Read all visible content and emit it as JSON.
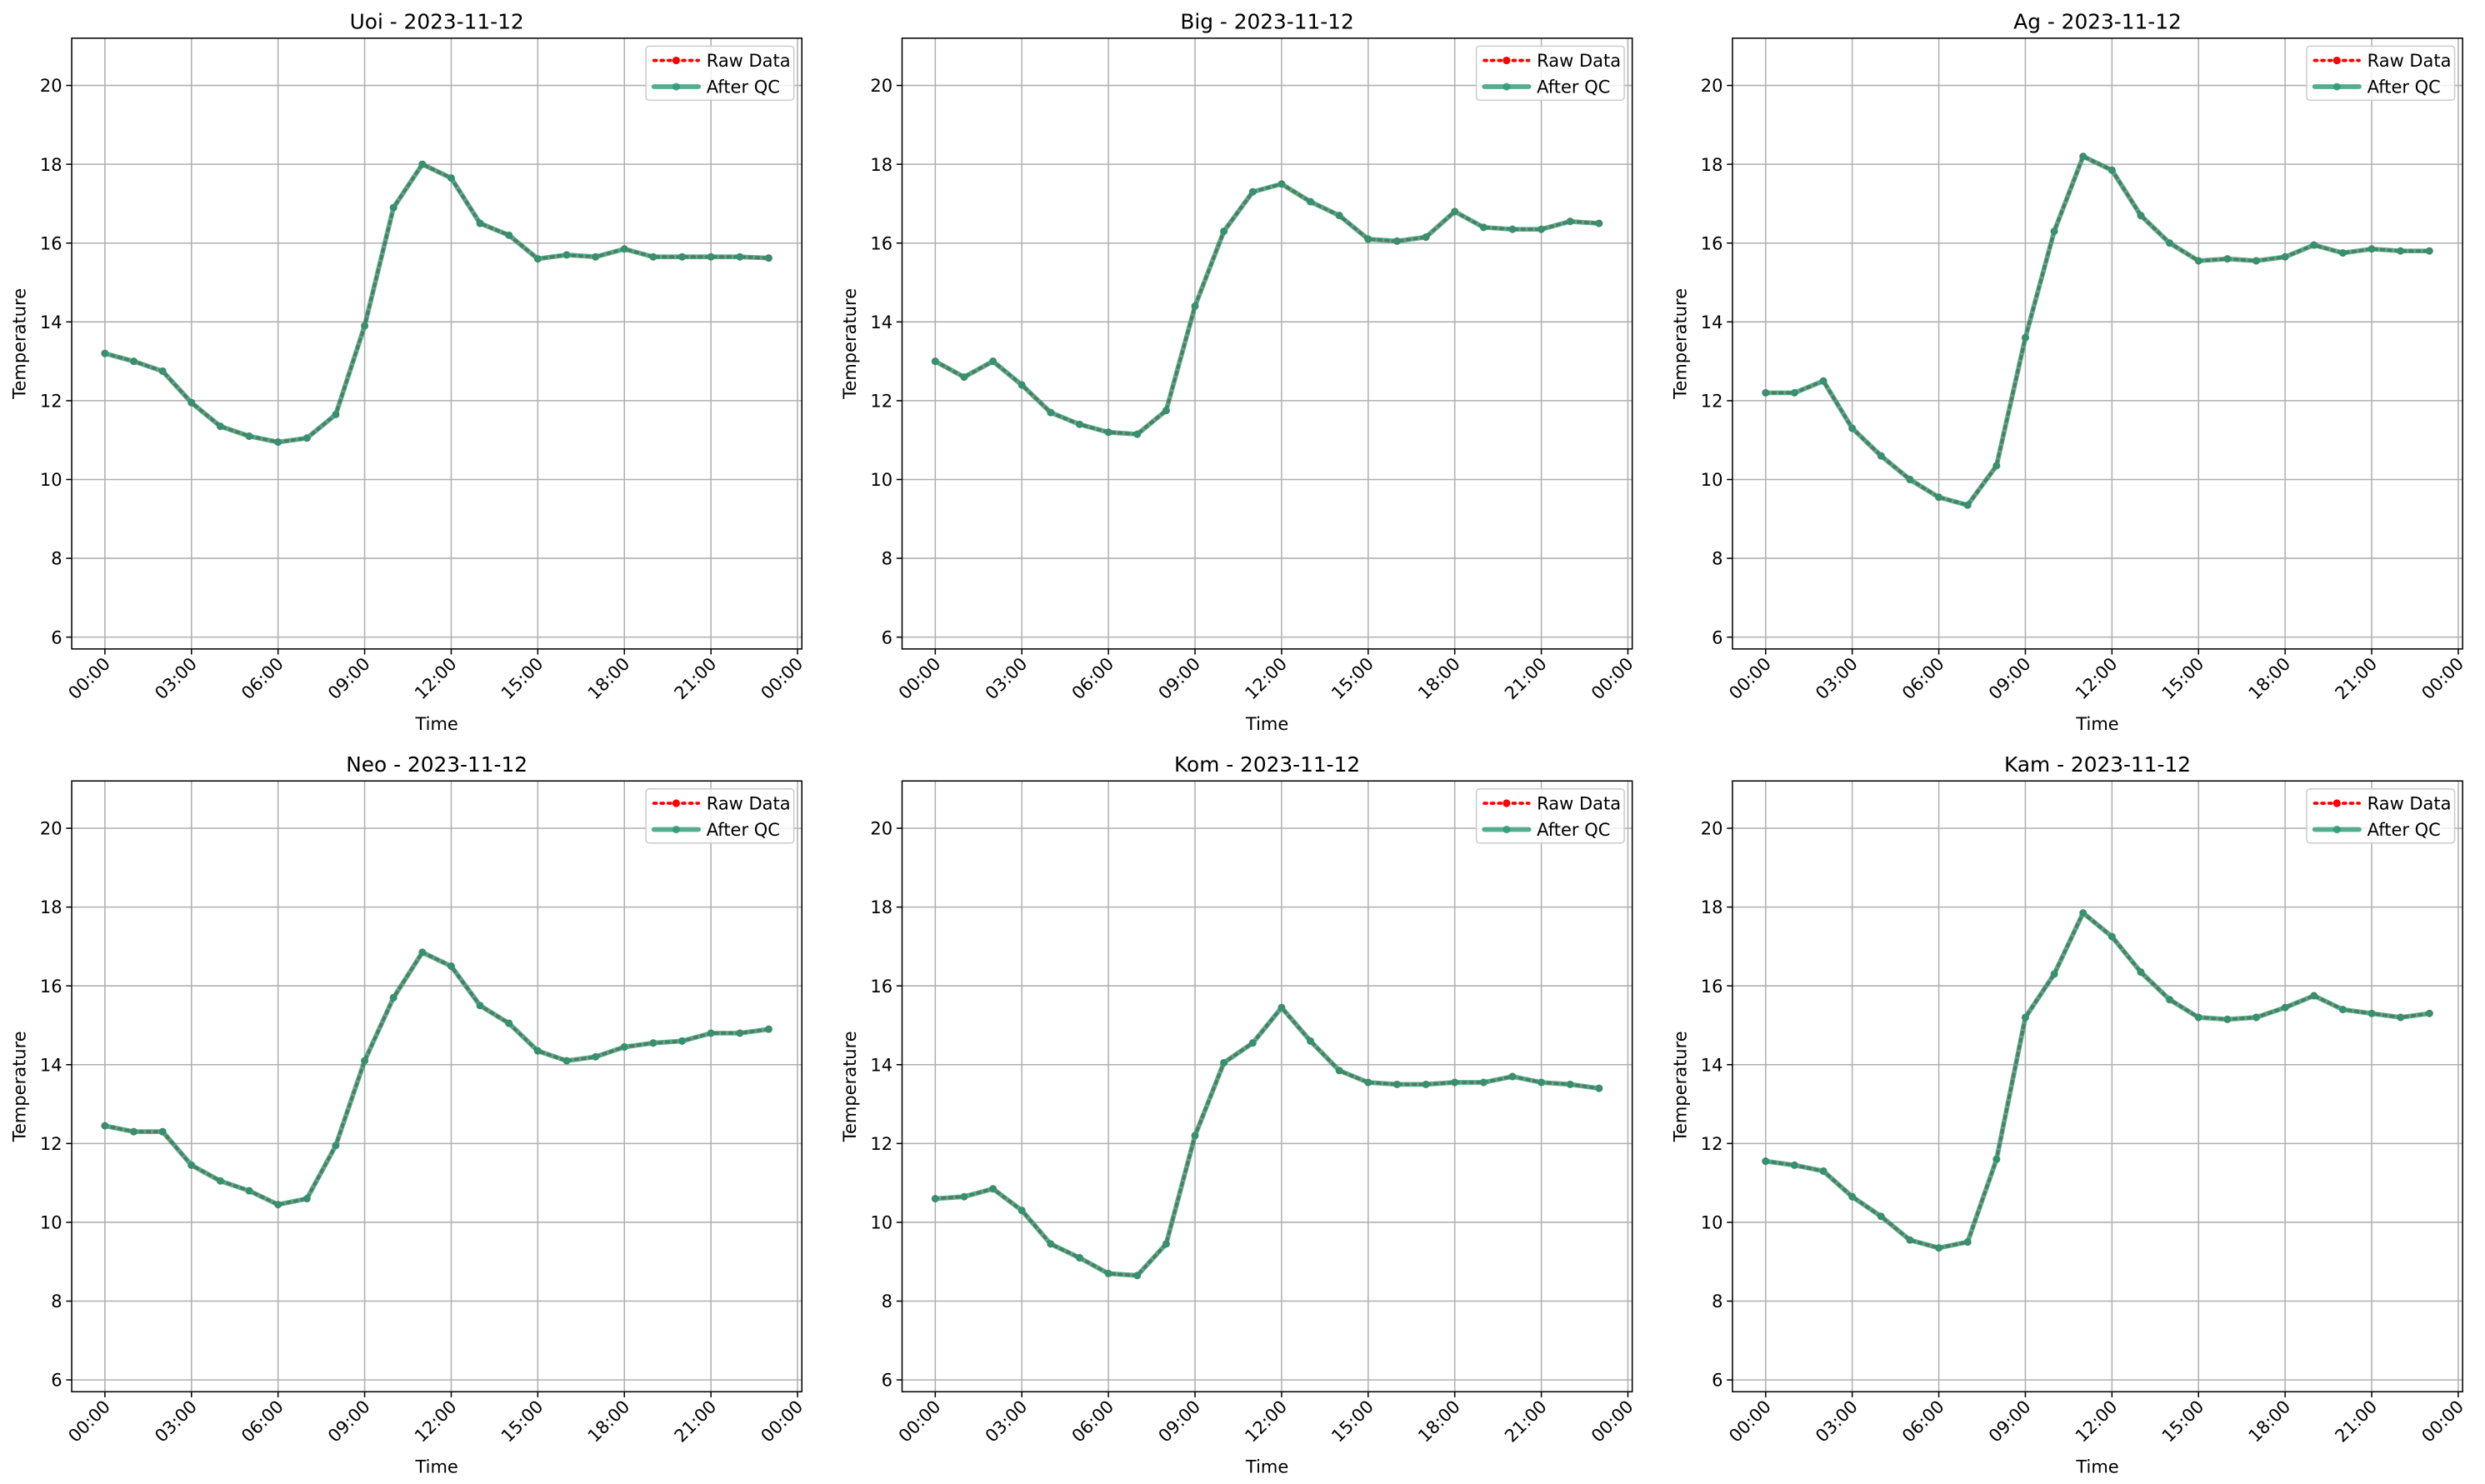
{
  "chart_data": [
    {
      "type": "line",
      "title": "Uoi - 2023-11-12",
      "xlabel": "Time",
      "ylabel": "Temperature",
      "x": [
        0,
        1,
        2,
        3,
        4,
        5,
        6,
        7,
        8,
        9,
        10,
        11,
        12,
        13,
        14,
        15,
        16,
        17,
        18,
        19,
        20,
        21,
        22,
        23
      ],
      "series": [
        {
          "name": "Raw Data",
          "color": "#ff0000",
          "style": "dotted",
          "values": [
            13.2,
            13.0,
            12.75,
            11.95,
            11.35,
            11.1,
            10.95,
            11.05,
            11.65,
            13.9,
            16.9,
            18.0,
            17.65,
            16.5,
            16.2,
            15.6,
            15.7,
            15.65,
            15.85,
            15.65,
            15.65,
            15.65,
            15.65,
            15.62
          ]
        },
        {
          "name": "After QC",
          "color": "#2a9a76",
          "style": "solid",
          "values": [
            13.2,
            13.0,
            12.75,
            11.95,
            11.35,
            11.1,
            10.95,
            11.05,
            11.65,
            13.9,
            16.9,
            18.0,
            17.65,
            16.5,
            16.2,
            15.6,
            15.7,
            15.65,
            15.85,
            15.65,
            15.65,
            15.65,
            15.65,
            15.62
          ]
        }
      ],
      "xlim": [
        -1.15,
        24.15
      ],
      "xticks": [
        {
          "value": 0,
          "label": "00:00"
        },
        {
          "value": 3,
          "label": "03:00"
        },
        {
          "value": 6,
          "label": "06:00"
        },
        {
          "value": 9,
          "label": "09:00"
        },
        {
          "value": 12,
          "label": "12:00"
        },
        {
          "value": 15,
          "label": "15:00"
        },
        {
          "value": 18,
          "label": "18:00"
        },
        {
          "value": 21,
          "label": "21:00"
        },
        {
          "value": 24,
          "label": "00:00"
        }
      ],
      "ylim": [
        5.7,
        21.2
      ],
      "yticks": [
        6,
        8,
        10,
        12,
        14,
        16,
        18,
        20
      ],
      "grid": true,
      "legend": "upper right"
    },
    {
      "type": "line",
      "title": "Big - 2023-11-12",
      "xlabel": "Time",
      "ylabel": "Temperature",
      "x": [
        0,
        1,
        2,
        3,
        4,
        5,
        6,
        7,
        8,
        9,
        10,
        11,
        12,
        13,
        14,
        15,
        16,
        17,
        18,
        19,
        20,
        21,
        22,
        23
      ],
      "series": [
        {
          "name": "Raw Data",
          "color": "#ff0000",
          "style": "dotted",
          "values": [
            13.0,
            12.6,
            13.0,
            12.4,
            11.7,
            11.4,
            11.2,
            11.15,
            11.75,
            14.4,
            16.3,
            17.3,
            17.5,
            17.05,
            16.7,
            16.1,
            16.05,
            16.15,
            16.8,
            16.4,
            16.35,
            16.35,
            16.55,
            16.5
          ]
        },
        {
          "name": "After QC",
          "color": "#2a9a76",
          "style": "solid",
          "values": [
            13.0,
            12.6,
            13.0,
            12.4,
            11.7,
            11.4,
            11.2,
            11.15,
            11.75,
            14.4,
            16.3,
            17.3,
            17.5,
            17.05,
            16.7,
            16.1,
            16.05,
            16.15,
            16.8,
            16.4,
            16.35,
            16.35,
            16.55,
            16.5
          ]
        }
      ],
      "xlim": [
        -1.15,
        24.15
      ],
      "xticks": [
        {
          "value": 0,
          "label": "00:00"
        },
        {
          "value": 3,
          "label": "03:00"
        },
        {
          "value": 6,
          "label": "06:00"
        },
        {
          "value": 9,
          "label": "09:00"
        },
        {
          "value": 12,
          "label": "12:00"
        },
        {
          "value": 15,
          "label": "15:00"
        },
        {
          "value": 18,
          "label": "18:00"
        },
        {
          "value": 21,
          "label": "21:00"
        },
        {
          "value": 24,
          "label": "00:00"
        }
      ],
      "ylim": [
        5.7,
        21.2
      ],
      "yticks": [
        6,
        8,
        10,
        12,
        14,
        16,
        18,
        20
      ],
      "grid": true,
      "legend": "upper right"
    },
    {
      "type": "line",
      "title": "Ag - 2023-11-12",
      "xlabel": "Time",
      "ylabel": "Temperature",
      "x": [
        0,
        1,
        2,
        3,
        4,
        5,
        6,
        7,
        8,
        9,
        10,
        11,
        12,
        13,
        14,
        15,
        16,
        17,
        18,
        19,
        20,
        21,
        22,
        23
      ],
      "series": [
        {
          "name": "Raw Data",
          "color": "#ff0000",
          "style": "dotted",
          "values": [
            12.2,
            12.2,
            12.5,
            11.3,
            10.6,
            10.0,
            9.55,
            9.35,
            10.35,
            13.6,
            16.3,
            18.2,
            17.85,
            16.7,
            16.0,
            15.55,
            15.6,
            15.55,
            15.65,
            15.95,
            15.75,
            15.85,
            15.8,
            15.8
          ]
        },
        {
          "name": "After QC",
          "color": "#2a9a76",
          "style": "solid",
          "values": [
            12.2,
            12.2,
            12.5,
            11.3,
            10.6,
            10.0,
            9.55,
            9.35,
            10.35,
            13.6,
            16.3,
            18.2,
            17.85,
            16.7,
            16.0,
            15.55,
            15.6,
            15.55,
            15.65,
            15.95,
            15.75,
            15.85,
            15.8,
            15.8
          ]
        }
      ],
      "xlim": [
        -1.15,
        24.15
      ],
      "xticks": [
        {
          "value": 0,
          "label": "00:00"
        },
        {
          "value": 3,
          "label": "03:00"
        },
        {
          "value": 6,
          "label": "06:00"
        },
        {
          "value": 9,
          "label": "09:00"
        },
        {
          "value": 12,
          "label": "12:00"
        },
        {
          "value": 15,
          "label": "15:00"
        },
        {
          "value": 18,
          "label": "18:00"
        },
        {
          "value": 21,
          "label": "21:00"
        },
        {
          "value": 24,
          "label": "00:00"
        }
      ],
      "ylim": [
        5.7,
        21.2
      ],
      "yticks": [
        6,
        8,
        10,
        12,
        14,
        16,
        18,
        20
      ],
      "grid": true,
      "legend": "upper right"
    },
    {
      "type": "line",
      "title": "Neo - 2023-11-12",
      "xlabel": "Time",
      "ylabel": "Temperature",
      "x": [
        0,
        1,
        2,
        3,
        4,
        5,
        6,
        7,
        8,
        9,
        10,
        11,
        12,
        13,
        14,
        15,
        16,
        17,
        18,
        19,
        20,
        21,
        22,
        23
      ],
      "series": [
        {
          "name": "Raw Data",
          "color": "#ff0000",
          "style": "dotted",
          "values": [
            12.45,
            12.3,
            12.3,
            11.45,
            11.05,
            10.8,
            10.45,
            10.6,
            11.95,
            14.1,
            15.7,
            16.85,
            16.5,
            15.5,
            15.05,
            14.35,
            14.1,
            14.2,
            14.45,
            14.55,
            14.6,
            14.8,
            14.8,
            14.9
          ]
        },
        {
          "name": "After QC",
          "color": "#2a9a76",
          "style": "solid",
          "values": [
            12.45,
            12.3,
            12.3,
            11.45,
            11.05,
            10.8,
            10.45,
            10.6,
            11.95,
            14.1,
            15.7,
            16.85,
            16.5,
            15.5,
            15.05,
            14.35,
            14.1,
            14.2,
            14.45,
            14.55,
            14.6,
            14.8,
            14.8,
            14.9
          ]
        }
      ],
      "xlim": [
        -1.15,
        24.15
      ],
      "xticks": [
        {
          "value": 0,
          "label": "00:00"
        },
        {
          "value": 3,
          "label": "03:00"
        },
        {
          "value": 6,
          "label": "06:00"
        },
        {
          "value": 9,
          "label": "09:00"
        },
        {
          "value": 12,
          "label": "12:00"
        },
        {
          "value": 15,
          "label": "15:00"
        },
        {
          "value": 18,
          "label": "18:00"
        },
        {
          "value": 21,
          "label": "21:00"
        },
        {
          "value": 24,
          "label": "00:00"
        }
      ],
      "ylim": [
        5.7,
        21.2
      ],
      "yticks": [
        6,
        8,
        10,
        12,
        14,
        16,
        18,
        20
      ],
      "grid": true,
      "legend": "upper right"
    },
    {
      "type": "line",
      "title": "Kom - 2023-11-12",
      "xlabel": "Time",
      "ylabel": "Temperature",
      "x": [
        0,
        1,
        2,
        3,
        4,
        5,
        6,
        7,
        8,
        9,
        10,
        11,
        12,
        13,
        14,
        15,
        16,
        17,
        18,
        19,
        20,
        21,
        22,
        23
      ],
      "series": [
        {
          "name": "Raw Data",
          "color": "#ff0000",
          "style": "dotted",
          "values": [
            10.6,
            10.65,
            10.85,
            10.3,
            9.45,
            9.1,
            8.7,
            8.65,
            9.45,
            12.2,
            14.05,
            14.55,
            15.45,
            14.6,
            13.85,
            13.55,
            13.5,
            13.5,
            13.55,
            13.55,
            13.7,
            13.55,
            13.5,
            13.4
          ]
        },
        {
          "name": "After QC",
          "color": "#2a9a76",
          "style": "solid",
          "values": [
            10.6,
            10.65,
            10.85,
            10.3,
            9.45,
            9.1,
            8.7,
            8.65,
            9.45,
            12.2,
            14.05,
            14.55,
            15.45,
            14.6,
            13.85,
            13.55,
            13.5,
            13.5,
            13.55,
            13.55,
            13.7,
            13.55,
            13.5,
            13.4
          ]
        }
      ],
      "xlim": [
        -1.15,
        24.15
      ],
      "xticks": [
        {
          "value": 0,
          "label": "00:00"
        },
        {
          "value": 3,
          "label": "03:00"
        },
        {
          "value": 6,
          "label": "06:00"
        },
        {
          "value": 9,
          "label": "09:00"
        },
        {
          "value": 12,
          "label": "12:00"
        },
        {
          "value": 15,
          "label": "15:00"
        },
        {
          "value": 18,
          "label": "18:00"
        },
        {
          "value": 21,
          "label": "21:00"
        },
        {
          "value": 24,
          "label": "00:00"
        }
      ],
      "ylim": [
        5.7,
        21.2
      ],
      "yticks": [
        6,
        8,
        10,
        12,
        14,
        16,
        18,
        20
      ],
      "grid": true,
      "legend": "upper right"
    },
    {
      "type": "line",
      "title": "Kam - 2023-11-12",
      "xlabel": "Time",
      "ylabel": "Temperature",
      "x": [
        0,
        1,
        2,
        3,
        4,
        5,
        6,
        7,
        8,
        9,
        10,
        11,
        12,
        13,
        14,
        15,
        16,
        17,
        18,
        19,
        20,
        21,
        22,
        23
      ],
      "series": [
        {
          "name": "Raw Data",
          "color": "#ff0000",
          "style": "dotted",
          "values": [
            11.55,
            11.45,
            11.3,
            10.65,
            10.15,
            9.55,
            9.35,
            9.5,
            11.6,
            15.2,
            16.3,
            17.85,
            17.25,
            16.35,
            15.65,
            15.2,
            15.15,
            15.2,
            15.45,
            15.75,
            15.4,
            15.3,
            15.2,
            15.3
          ]
        },
        {
          "name": "After QC",
          "color": "#2a9a76",
          "style": "solid",
          "values": [
            11.55,
            11.45,
            11.3,
            10.65,
            10.15,
            9.55,
            9.35,
            9.5,
            11.6,
            15.2,
            16.3,
            17.85,
            17.25,
            16.35,
            15.65,
            15.2,
            15.15,
            15.2,
            15.45,
            15.75,
            15.4,
            15.3,
            15.2,
            15.3
          ]
        }
      ],
      "xlim": [
        -1.15,
        24.15
      ],
      "xticks": [
        {
          "value": 0,
          "label": "00:00"
        },
        {
          "value": 3,
          "label": "03:00"
        },
        {
          "value": 6,
          "label": "06:00"
        },
        {
          "value": 9,
          "label": "09:00"
        },
        {
          "value": 12,
          "label": "12:00"
        },
        {
          "value": 15,
          "label": "15:00"
        },
        {
          "value": 18,
          "label": "18:00"
        },
        {
          "value": 21,
          "label": "21:00"
        },
        {
          "value": 24,
          "label": "00:00"
        }
      ],
      "ylim": [
        5.7,
        21.2
      ],
      "yticks": [
        6,
        8,
        10,
        12,
        14,
        16,
        18,
        20
      ],
      "grid": true,
      "legend": "upper right"
    }
  ]
}
